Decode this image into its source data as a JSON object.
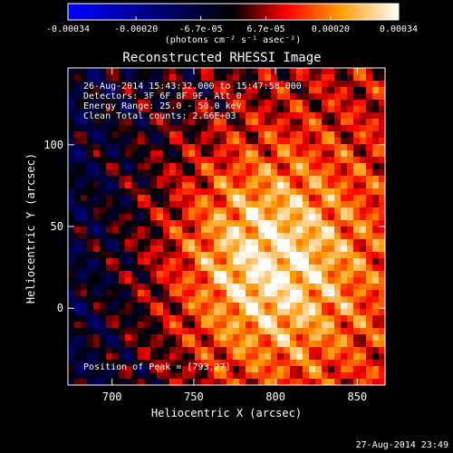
{
  "chart_data": {
    "type": "heatmap",
    "title": "Reconstructed RHESSI Image",
    "xlabel": "Heliocentric X (arcsec)",
    "ylabel": "Heliocentric Y (arcsec)",
    "xlim": [
      673,
      867
    ],
    "ylim": [
      -47,
      147
    ],
    "x_ticks": [
      {
        "value": 700,
        "label": "700"
      },
      {
        "value": 750,
        "label": "750"
      },
      {
        "value": 800,
        "label": "800"
      },
      {
        "value": 850,
        "label": "850"
      }
    ],
    "y_ticks": [
      {
        "value": 0,
        "label": "0"
      },
      {
        "value": 50,
        "label": "50"
      },
      {
        "value": 100,
        "label": "100"
      }
    ],
    "colorbar": {
      "min": -0.00034,
      "max": 0.00034,
      "colormap": "blue-black-red-yellow-white",
      "colors": [
        "#0000ff",
        "#000000",
        "#ff0000",
        "#ff9900",
        "#ffffff"
      ],
      "label": "(photons cm⁻² s⁻¹ asec⁻²)",
      "ticks": [
        {
          "value": -0.00034,
          "label": "-0.00034"
        },
        {
          "value": -0.0002,
          "label": "-0.00020"
        },
        {
          "value": -6.7e-05,
          "label": "-6.7e-05"
        },
        {
          "value": 6.7e-05,
          "label": "6.7e-05"
        },
        {
          "value": 0.0002,
          "label": "0.00020"
        },
        {
          "value": 0.00034,
          "label": "0.00034"
        }
      ]
    },
    "annotations": [
      "26-Aug-2014 15:43:32.000 to 15:47:58.000",
      "Detectors: 3F 6F 8F 9F, Att 0",
      "Energy Range: 25.0 - 50.0 keV",
      "Clean     Total counts: 2.66E+03"
    ],
    "peak_label": "Position of Peak = [793,27]",
    "peak": [
      793,
      27
    ],
    "grid": false,
    "legend": "none"
  },
  "footer": {
    "timestamp": "27-Aug-2014 23:49"
  }
}
